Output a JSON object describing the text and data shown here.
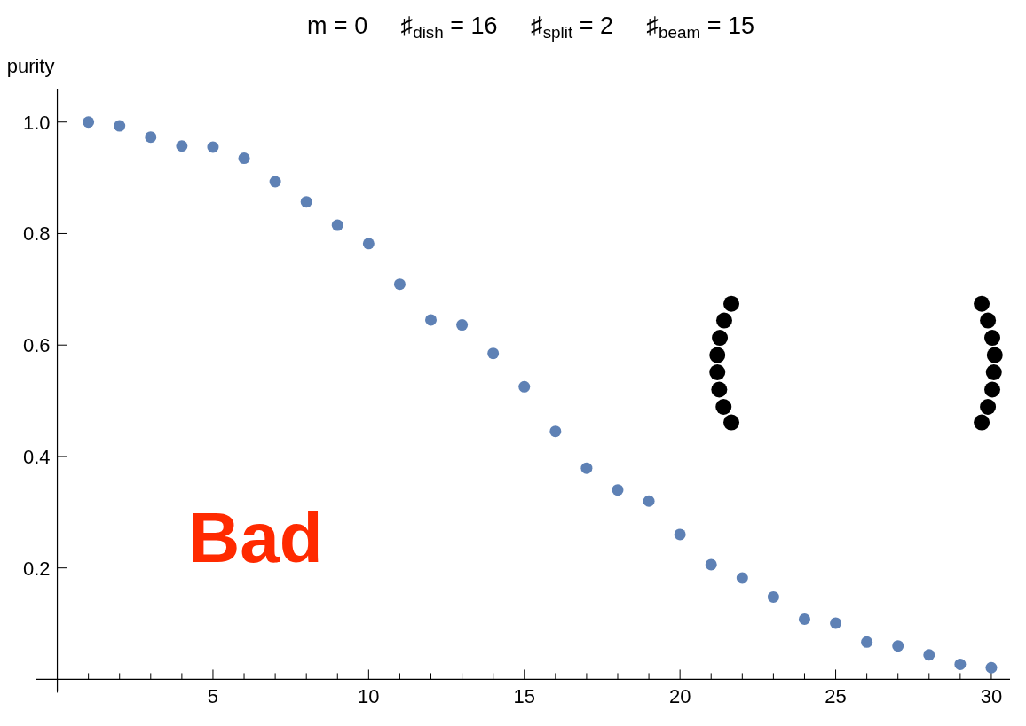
{
  "chart_data": {
    "type": "scatter",
    "title": "m = 0     ♯$_{dish}$ = 16     ♯$_{split}$ = 2     ♯$_{beam}$ = 15",
    "ylabel": "purity",
    "marker": "circle",
    "grid": false,
    "xlim": [
      -0.7,
      30.6
    ],
    "ylim": [
      -0.02,
      1.06
    ],
    "xticks": [
      {
        "value": 1,
        "label": null
      },
      {
        "value": 2,
        "label": null
      },
      {
        "value": 3,
        "label": null
      },
      {
        "value": 4,
        "label": null
      },
      5,
      {
        "value": 6,
        "label": null
      },
      {
        "value": 7,
        "label": null
      },
      {
        "value": 8,
        "label": null
      },
      {
        "value": 9,
        "label": null
      },
      10,
      {
        "value": 11,
        "label": null
      },
      {
        "value": 12,
        "label": null
      },
      {
        "value": 13,
        "label": null
      },
      {
        "value": 14,
        "label": null
      },
      15,
      {
        "value": 16,
        "label": null
      },
      {
        "value": 17,
        "label": null
      },
      {
        "value": 18,
        "label": null
      },
      {
        "value": 19,
        "label": null
      },
      20,
      {
        "value": 21,
        "label": null
      },
      {
        "value": 22,
        "label": null
      },
      {
        "value": 23,
        "label": null
      },
      {
        "value": 24,
        "label": null
      },
      25,
      {
        "value": 26,
        "label": null
      },
      {
        "value": 27,
        "label": null
      },
      {
        "value": 28,
        "label": null
      },
      {
        "value": 29,
        "label": null
      },
      30
    ],
    "yticks": [
      {
        "value": 0.2,
        "label": "0.2"
      },
      {
        "value": 0.4,
        "label": "0.4"
      },
      {
        "value": 0.6,
        "label": "0.6"
      },
      {
        "value": 0.8,
        "label": "0.8"
      },
      {
        "value": 1.0,
        "label": "1.0"
      }
    ],
    "series": [
      {
        "color": "#5e81b5",
        "x": [
          1,
          2,
          3,
          4,
          5,
          6,
          7,
          8,
          9,
          10,
          11,
          12,
          13,
          14,
          15,
          16,
          17,
          18,
          19,
          20,
          21,
          22,
          23,
          24,
          25,
          26,
          27,
          28,
          29,
          30
        ],
        "values": [
          1.0,
          0.993,
          0.973,
          0.957,
          0.955,
          0.935,
          0.893,
          0.857,
          0.815,
          0.782,
          0.709,
          0.645,
          0.636,
          0.585,
          0.525,
          0.445,
          0.379,
          0.34,
          0.32,
          0.26,
          0.206,
          0.182,
          0.148,
          0.108,
          0.101,
          0.067,
          0.06,
          0.044,
          0.027,
          0.021
        ]
      },
      {
        "color": "#000000",
        "x": [
          21.65,
          21.42,
          21.28,
          21.2,
          21.2,
          21.26,
          21.4,
          21.65,
          29.69,
          29.89,
          30.03,
          30.11,
          30.08,
          30.03,
          29.89,
          29.69
        ],
        "values": [
          0.674,
          0.644,
          0.613,
          0.582,
          0.551,
          0.52,
          0.489,
          0.461,
          0.674,
          0.644,
          0.613,
          0.582,
          0.551,
          0.52,
          0.489,
          0.461
        ]
      }
    ],
    "annotations": [
      "Bad"
    ]
  }
}
